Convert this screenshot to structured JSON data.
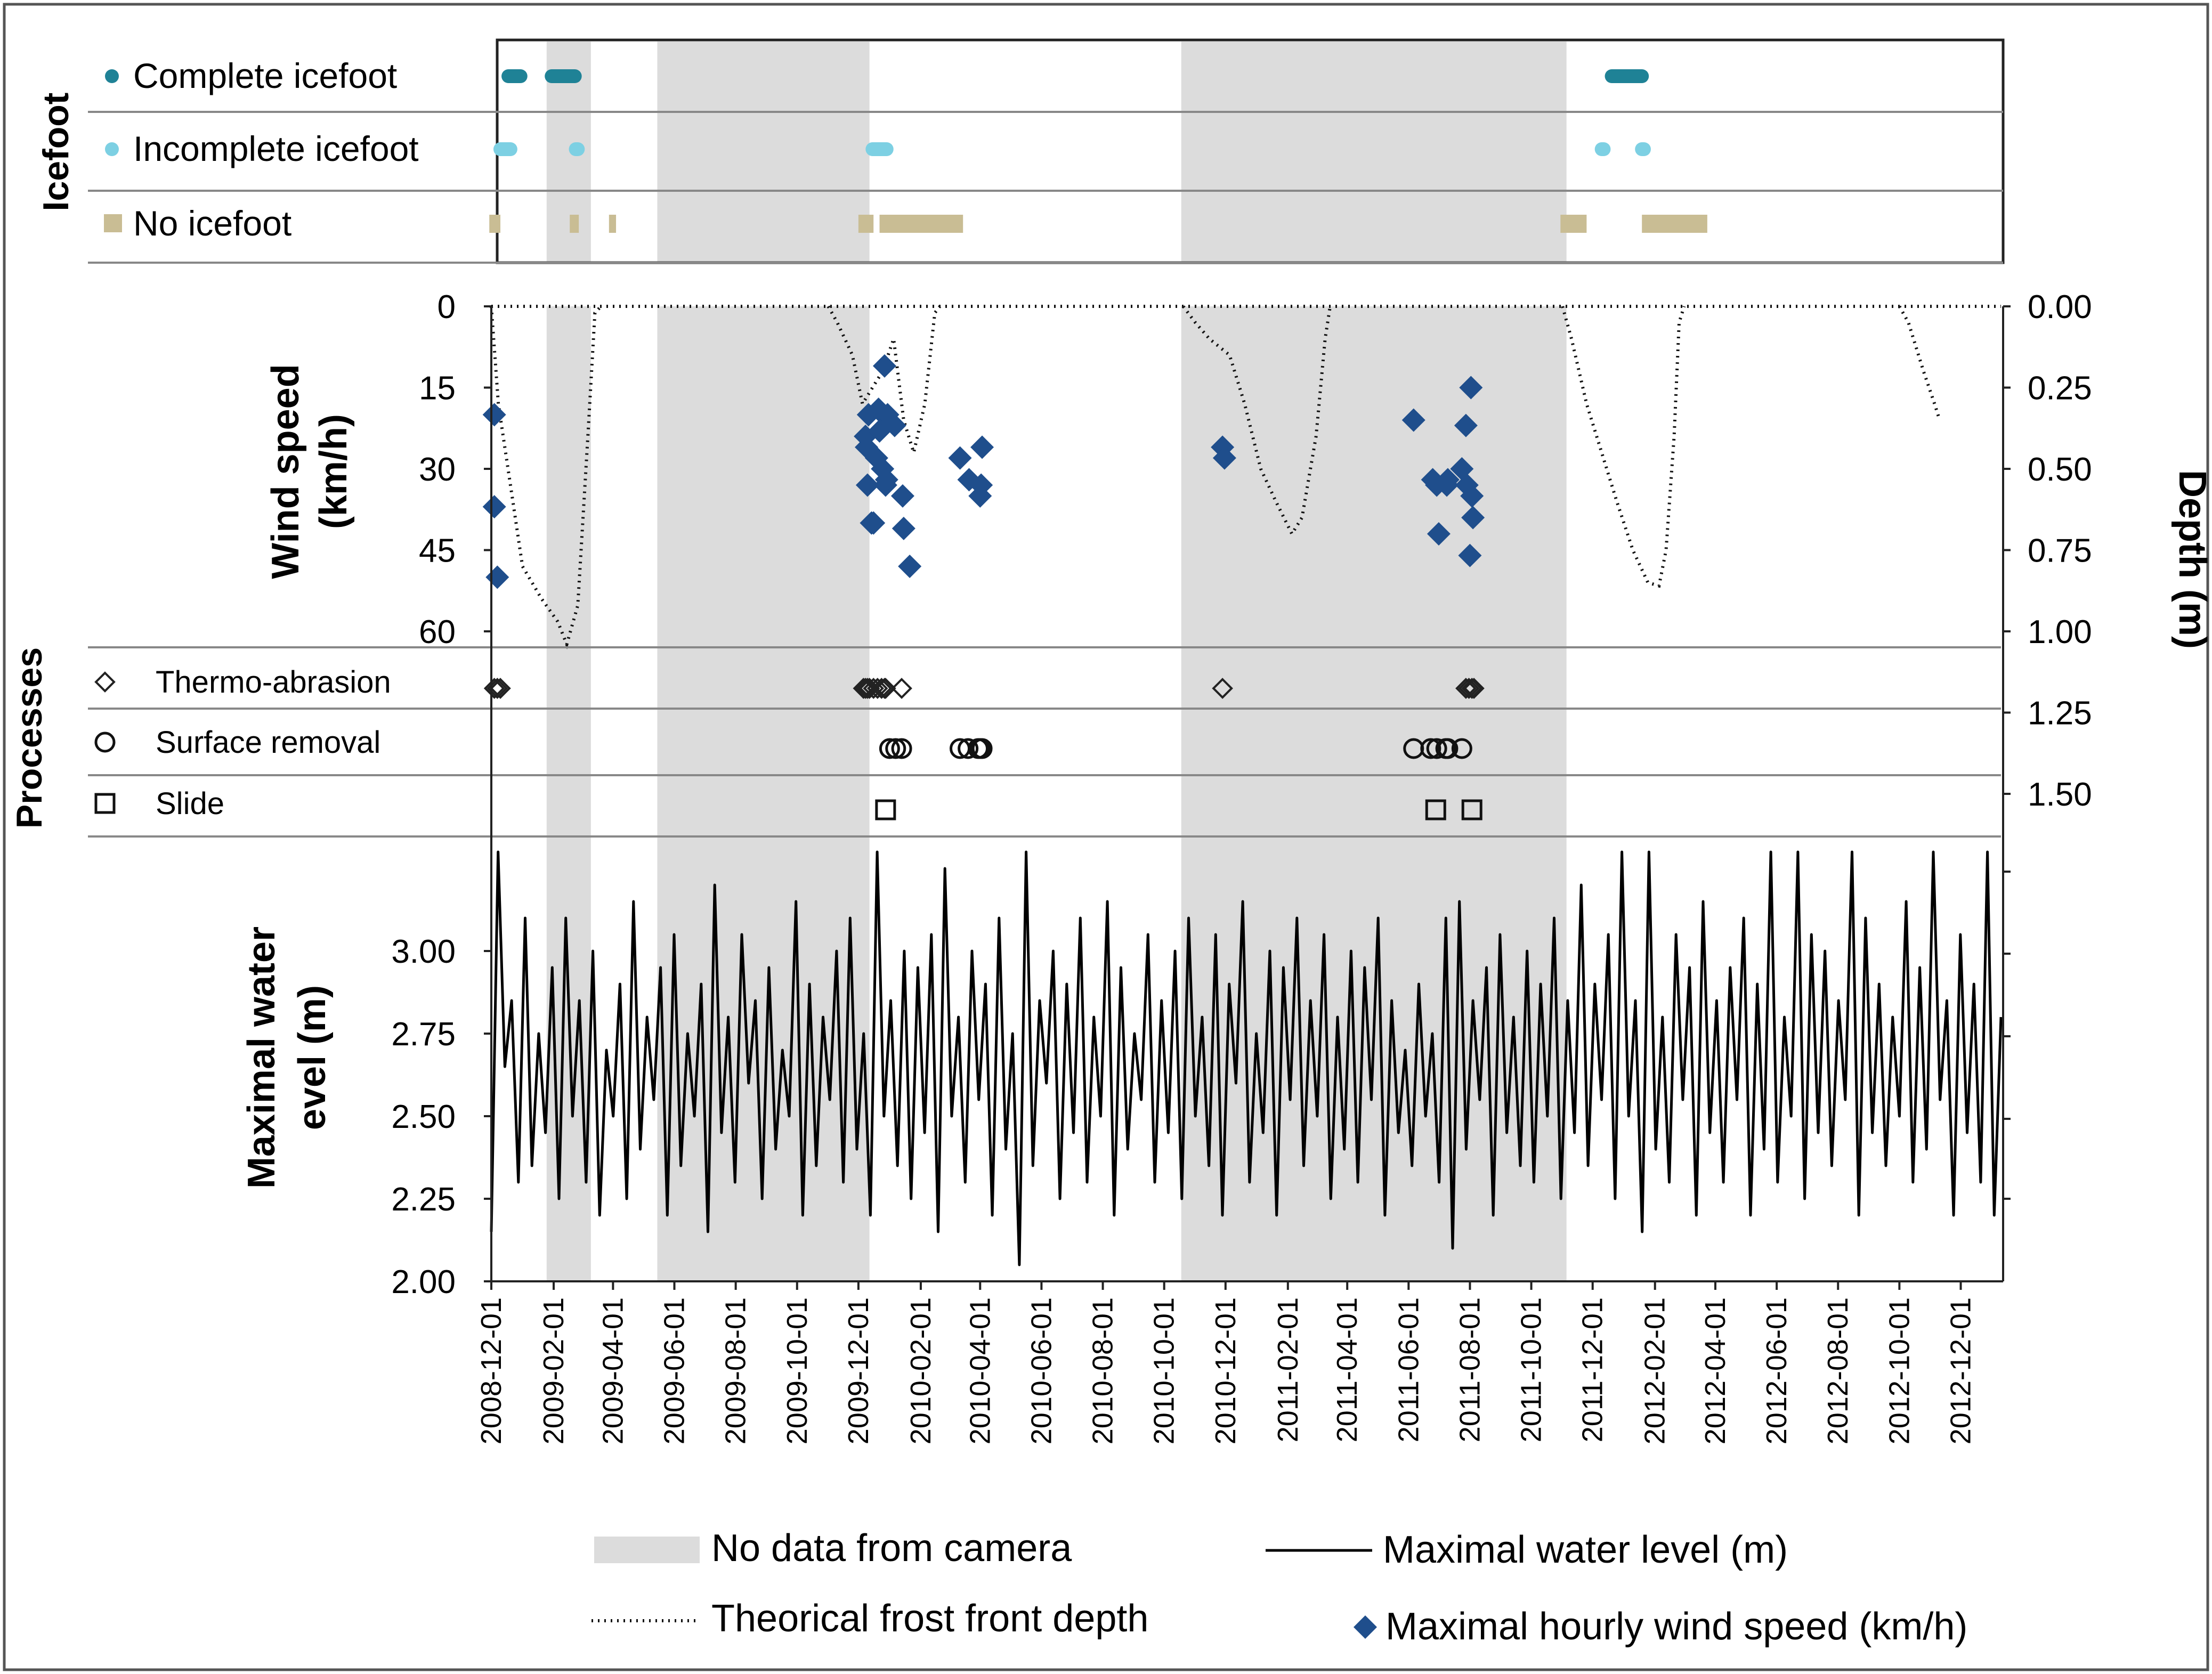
{
  "chart_data": {
    "type": "composite",
    "x_axis": {
      "range": [
        "2008-12-01",
        "2013-01-10"
      ],
      "tick_labels": [
        "2008-12-01",
        "2009-02-01",
        "2009-04-01",
        "2009-06-01",
        "2009-08-01",
        "2009-10-01",
        "2009-12-01",
        "2010-02-01",
        "2010-04-01",
        "2010-06-01",
        "2010-08-01",
        "2010-10-01",
        "2010-12-01",
        "2011-02-01",
        "2011-04-01",
        "2011-06-01",
        "2011-08-01",
        "2011-10-01",
        "2011-12-01",
        "2012-02-01",
        "2012-04-01",
        "2012-06-01",
        "2012-08-01",
        "2012-10-01",
        "2012-12-01"
      ]
    },
    "no_camera_periods": [
      [
        "2009-01-25",
        "2009-03-10"
      ],
      [
        "2009-05-15",
        "2009-12-12"
      ],
      [
        "2010-10-18",
        "2011-11-05"
      ]
    ],
    "icefoot": {
      "axis_title": "Icefoot",
      "rows": [
        {
          "label": "Complete icefoot",
          "color": "#1f8296",
          "periods": [
            [
              "2008-12-18",
              "2008-12-30"
            ],
            [
              "2009-01-30",
              "2009-02-22"
            ],
            [
              "2011-12-20",
              "2012-01-19"
            ]
          ]
        },
        {
          "label": "Incomplete icefoot",
          "color": "#7dd0e3",
          "periods": [
            [
              "2008-12-10",
              "2008-12-20"
            ],
            [
              "2009-02-23",
              "2009-02-25"
            ],
            [
              "2009-12-15",
              "2009-12-29"
            ],
            [
              "2011-12-10",
              "2011-12-12"
            ],
            [
              "2012-01-19",
              "2012-01-21"
            ]
          ]
        },
        {
          "label": "No icefoot",
          "color": "#c9bd94",
          "periods": [
            [
              "2008-11-29",
              "2008-12-10"
            ],
            [
              "2009-02-17",
              "2009-02-26"
            ],
            [
              "2009-03-28",
              "2009-04-04"
            ],
            [
              "2009-12-01",
              "2009-12-16"
            ],
            [
              "2009-12-22",
              "2010-03-15"
            ],
            [
              "2011-10-30",
              "2011-11-25"
            ],
            [
              "2012-01-19",
              "2012-03-24"
            ]
          ]
        }
      ]
    },
    "wind": {
      "ylabel": "Wind speed (km/h)",
      "yticks": [
        0,
        15,
        30,
        45,
        60
      ],
      "ylim": [
        0,
        60
      ],
      "reversed": true,
      "series_name": "Maximal hourly wind speed (km/h)",
      "color": "#1f4e8c",
      "points": [
        [
          "2008-12-04",
          20
        ],
        [
          "2008-12-04",
          37
        ],
        [
          "2008-12-07",
          50
        ],
        [
          "2009-12-08",
          24
        ],
        [
          "2009-12-09",
          26
        ],
        [
          "2009-12-10",
          33
        ],
        [
          "2009-12-11",
          20
        ],
        [
          "2009-12-14",
          40
        ],
        [
          "2009-12-16",
          40
        ],
        [
          "2009-12-19",
          28
        ],
        [
          "2009-12-21",
          19
        ],
        [
          "2009-12-22",
          23
        ],
        [
          "2009-12-25",
          30
        ],
        [
          "2009-12-26",
          20
        ],
        [
          "2009-12-27",
          11
        ],
        [
          "2009-12-28",
          33
        ],
        [
          "2009-12-29",
          32
        ],
        [
          "2009-12-30",
          20
        ],
        [
          "2010-01-06",
          22
        ],
        [
          "2010-01-14",
          35
        ],
        [
          "2010-01-15",
          41
        ],
        [
          "2010-01-21",
          48
        ],
        [
          "2010-03-12",
          28
        ],
        [
          "2010-03-21",
          32
        ],
        [
          "2010-04-01",
          35
        ],
        [
          "2010-04-02",
          33
        ],
        [
          "2010-04-03",
          26
        ],
        [
          "2010-11-28",
          26
        ],
        [
          "2010-11-30",
          28
        ],
        [
          "2011-06-06",
          21
        ],
        [
          "2011-06-25",
          32
        ],
        [
          "2011-06-29",
          33
        ],
        [
          "2011-07-01",
          42
        ],
        [
          "2011-07-09",
          33
        ],
        [
          "2011-07-10",
          32
        ],
        [
          "2011-07-24",
          30
        ],
        [
          "2011-07-28",
          22
        ],
        [
          "2011-07-29",
          33
        ],
        [
          "2011-08-01",
          46
        ],
        [
          "2011-08-02",
          15
        ],
        [
          "2011-08-03",
          35
        ],
        [
          "2011-08-04",
          39
        ]
      ]
    },
    "frost": {
      "ylabel": "Depth (m)",
      "yticks": [
        "0.00",
        "0.25",
        "0.50",
        "0.75",
        "1.00",
        "1.25",
        "1.50"
      ],
      "ylim": [
        0,
        1.5
      ],
      "reversed": true,
      "series_name": "Theorical frost front depth",
      "points": [
        [
          "2008-12-01",
          0.0
        ],
        [
          "2008-12-08",
          0.3
        ],
        [
          "2008-12-20",
          0.55
        ],
        [
          "2009-01-01",
          0.8
        ],
        [
          "2009-01-20",
          0.9
        ],
        [
          "2009-02-05",
          0.97
        ],
        [
          "2009-02-14",
          1.04
        ],
        [
          "2009-02-25",
          0.92
        ],
        [
          "2009-03-07",
          0.4
        ],
        [
          "2009-03-14",
          0.02
        ],
        [
          "2009-03-20",
          0.0
        ],
        [
          "2009-11-01",
          0.0
        ],
        [
          "2009-11-10",
          0.05
        ],
        [
          "2009-11-25",
          0.15
        ],
        [
          "2009-12-05",
          0.3
        ],
        [
          "2009-12-15",
          0.25
        ],
        [
          "2009-12-25",
          0.2
        ],
        [
          "2010-01-05",
          0.1
        ],
        [
          "2010-01-15",
          0.35
        ],
        [
          "2010-01-25",
          0.45
        ],
        [
          "2010-02-05",
          0.3
        ],
        [
          "2010-02-15",
          0.02
        ],
        [
          "2010-02-20",
          0.0
        ],
        [
          "2010-10-20",
          0.0
        ],
        [
          "2010-11-01",
          0.05
        ],
        [
          "2010-11-15",
          0.1
        ],
        [
          "2010-12-05",
          0.15
        ],
        [
          "2010-12-20",
          0.3
        ],
        [
          "2011-01-05",
          0.5
        ],
        [
          "2011-01-20",
          0.6
        ],
        [
          "2011-02-05",
          0.7
        ],
        [
          "2011-02-15",
          0.65
        ],
        [
          "2011-03-01",
          0.4
        ],
        [
          "2011-03-10",
          0.1
        ],
        [
          "2011-03-15",
          0.0
        ],
        [
          "2011-11-01",
          0.0
        ],
        [
          "2011-11-10",
          0.1
        ],
        [
          "2011-11-25",
          0.3
        ],
        [
          "2011-12-10",
          0.45
        ],
        [
          "2011-12-25",
          0.6
        ],
        [
          "2012-01-10",
          0.75
        ],
        [
          "2012-01-25",
          0.85
        ],
        [
          "2012-02-05",
          0.86
        ],
        [
          "2012-02-12",
          0.75
        ],
        [
          "2012-02-20",
          0.4
        ],
        [
          "2012-02-25",
          0.05
        ],
        [
          "2012-03-01",
          0.0
        ],
        [
          "2012-10-01",
          0.0
        ],
        [
          "2012-10-10",
          0.05
        ],
        [
          "2012-10-25",
          0.2
        ],
        [
          "2012-11-05",
          0.3
        ],
        [
          "2012-11-10",
          0.35
        ]
      ]
    },
    "processes": {
      "axis_title": "Processes",
      "rows": [
        {
          "label": "Thermo-abrasion",
          "symbol": "diamond",
          "dates": [
            "2008-12-04",
            "2008-12-07",
            "2008-12-10",
            "2009-12-06",
            "2009-12-08",
            "2009-12-10",
            "2009-12-12",
            "2009-12-16",
            "2009-12-20",
            "2009-12-24",
            "2009-12-27",
            "2009-12-28",
            "2010-01-13",
            "2010-11-28",
            "2011-07-28",
            "2011-07-31",
            "2011-08-03",
            "2011-08-05"
          ]
        },
        {
          "label": "Surface removal",
          "symbol": "circle",
          "dates": [
            "2010-01-01",
            "2010-01-07",
            "2010-01-13",
            "2010-03-12",
            "2010-03-20",
            "2010-03-30",
            "2010-04-01",
            "2010-04-03",
            "2011-06-06",
            "2011-06-23",
            "2011-06-29",
            "2011-07-08",
            "2011-07-10",
            "2011-07-24"
          ]
        },
        {
          "label": "Slide",
          "symbol": "square",
          "dates": [
            "2009-12-28",
            "2011-06-28",
            "2011-08-03"
          ]
        }
      ]
    },
    "water": {
      "ylabel": "Maximal water level (m)",
      "yticks": [
        "2.00",
        "2.25",
        "2.50",
        "2.75",
        "3.00"
      ],
      "ylim": [
        2.0,
        3.35
      ],
      "series_name": "Maximal water level (m)",
      "color": "#000000",
      "points": [
        2.15,
        3.3,
        2.65,
        2.85,
        2.3,
        3.1,
        2.35,
        2.75,
        2.45,
        2.95,
        2.25,
        3.1,
        2.5,
        2.85,
        2.3,
        3.0,
        2.2,
        2.7,
        2.5,
        2.9,
        2.25,
        3.15,
        2.4,
        2.8,
        2.55,
        2.95,
        2.2,
        3.05,
        2.35,
        2.75,
        2.5,
        2.9,
        2.15,
        3.2,
        2.45,
        2.8,
        2.3,
        3.05,
        2.6,
        2.85,
        2.25,
        2.95,
        2.4,
        2.7,
        2.5,
        3.15,
        2.2,
        2.9,
        2.35,
        2.8,
        2.55,
        3.0,
        2.3,
        3.1,
        2.4,
        2.75,
        2.2,
        3.3,
        2.5,
        2.85,
        2.35,
        3.0,
        2.25,
        2.95,
        2.45,
        3.05,
        2.15,
        3.25,
        2.5,
        2.8,
        2.3,
        3.0,
        2.55,
        2.9,
        2.2,
        3.1,
        2.4,
        2.75,
        2.05,
        3.3,
        2.35,
        2.85,
        2.6,
        3.0,
        2.25,
        2.9,
        2.45,
        3.1,
        2.3,
        2.8,
        2.5,
        3.15,
        2.2,
        2.95,
        2.4,
        2.75,
        2.55,
        3.05,
        2.3,
        2.85,
        2.45,
        3.0,
        2.25,
        3.1,
        2.5,
        2.8,
        2.35,
        3.05,
        2.2,
        2.9,
        2.6,
        3.15,
        2.3,
        2.75,
        2.45,
        3.0,
        2.2,
        2.95,
        2.55,
        3.1,
        2.35,
        2.85,
        2.5,
        3.05,
        2.25,
        2.8,
        2.4,
        3.0,
        2.3,
        2.95,
        2.55,
        3.1,
        2.2,
        2.85,
        2.45,
        2.7,
        2.35,
        2.9,
        2.5,
        2.75,
        2.3,
        3.1,
        2.1,
        3.15,
        2.4,
        2.85,
        2.55,
        2.95,
        2.2,
        3.05,
        2.45,
        2.8,
        2.35,
        3.0,
        2.3,
        2.9,
        2.5,
        3.1,
        2.25,
        2.85,
        2.45,
        3.2,
        2.35,
        2.9,
        2.55,
        3.05,
        2.25,
        3.3,
        2.5,
        2.85,
        2.15,
        3.3,
        2.4,
        2.8,
        2.3,
        3.05,
        2.55,
        2.95,
        2.2,
        3.15,
        2.45,
        2.85,
        2.3,
        2.95,
        2.55,
        3.1,
        2.2,
        2.9,
        2.4,
        3.3,
        2.3,
        2.8,
        2.5,
        3.3,
        2.25,
        3.05,
        2.45,
        3.0,
        2.35,
        2.85,
        2.55,
        3.3,
        2.2,
        3.1,
        2.45,
        2.9,
        2.35,
        2.8,
        2.5,
        3.15,
        2.3,
        2.95,
        2.4,
        3.3,
        2.55,
        2.85,
        2.2,
        3.05,
        2.45,
        2.9,
        2.3,
        3.3,
        2.2,
        2.8
      ]
    }
  },
  "legend": {
    "no_camera": "No data from camera",
    "water": "Maximal water level (m)",
    "frost": "Theorical frost front depth",
    "wind": "Maximal hourly wind speed (km/h)"
  }
}
